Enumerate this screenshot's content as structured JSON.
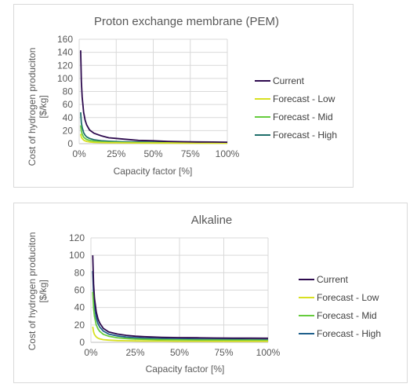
{
  "charts": [
    {
      "title": "Proton exchange membrane (PEM)",
      "ylabel_lines": [
        "Cost of hydrogen produciton",
        "[$/kg]"
      ],
      "xlabel": "Capacity factor [%]",
      "yticks": [
        "0",
        "20",
        "40",
        "60",
        "80",
        "100",
        "120",
        "140",
        "160"
      ],
      "xticks": [
        "0%",
        "25%",
        "50%",
        "75%",
        "100%"
      ],
      "legend": [
        "Current",
        "Forecast - Low",
        "Forecast - Mid",
        "Forecast - High"
      ]
    },
    {
      "title": "Alkaline",
      "ylabel_lines": [
        "Cost of hydrogen produciton",
        "[$/kg]"
      ],
      "xlabel": "Capacity factor [%]",
      "yticks": [
        "0",
        "20",
        "40",
        "60",
        "80",
        "100",
        "120"
      ],
      "xticks": [
        "0%",
        "25%",
        "50%",
        "75%",
        "100%"
      ],
      "legend": [
        "Current",
        "Forecast - Low",
        "Forecast - Mid",
        "Forecast - High"
      ]
    }
  ],
  "chart_data": [
    {
      "type": "line",
      "title": "Proton exchange membrane (PEM)",
      "xlabel": "Capacity factor [%]",
      "ylabel": "Cost of hydrogen produciton [$/kg]",
      "xlim": [
        0,
        100
      ],
      "ylim": [
        0,
        160
      ],
      "grid": true,
      "legend_position": "right",
      "series": [
        {
          "name": "Current",
          "color": "#2d0a4e",
          "x": [
            1,
            1.5,
            2,
            3,
            4,
            5,
            7,
            10,
            15,
            20,
            25,
            30,
            40,
            50,
            60,
            70,
            80,
            90,
            100
          ],
          "y": [
            143,
            95,
            72,
            48,
            36,
            29,
            21,
            16,
            12,
            9,
            8,
            7,
            5,
            4.5,
            3.5,
            3,
            2.7,
            2.5,
            2.3
          ]
        },
        {
          "name": "Forecast - Low",
          "color": "#d8e021",
          "x": [
            1,
            1.5,
            2,
            3,
            4,
            5,
            7,
            10,
            15,
            20,
            25,
            30,
            40,
            50,
            60,
            70,
            80,
            90,
            100
          ],
          "y": [
            15,
            10,
            8,
            5.5,
            4.3,
            3.5,
            2.7,
            2.1,
            1.7,
            1.4,
            1.3,
            1.2,
            1.1,
            1,
            1,
            0.9,
            0.9,
            0.9,
            0.9
          ]
        },
        {
          "name": "Forecast - Mid",
          "color": "#66cc3d",
          "x": [
            1,
            1.5,
            2,
            3,
            4,
            5,
            7,
            10,
            15,
            20,
            25,
            30,
            40,
            50,
            60,
            70,
            80,
            90,
            100
          ],
          "y": [
            28,
            19,
            15,
            10,
            8,
            6.5,
            5,
            3.7,
            2.8,
            2.3,
            2,
            1.8,
            1.6,
            1.5,
            1.4,
            1.3,
            1.3,
            1.3,
            1.2
          ]
        },
        {
          "name": "Forecast - High",
          "color": "#1f6f6b",
          "x": [
            1,
            1.5,
            2,
            3,
            4,
            5,
            7,
            10,
            15,
            20,
            25,
            30,
            40,
            50,
            60,
            70,
            80,
            90,
            100
          ],
          "y": [
            48,
            32,
            25,
            17,
            13,
            10.5,
            8,
            6,
            4.5,
            3.7,
            3.2,
            2.9,
            2.5,
            2.3,
            2.1,
            2,
            2,
            1.9,
            1.9
          ]
        }
      ]
    },
    {
      "type": "line",
      "title": "Alkaline",
      "xlabel": "Capacity factor [%]",
      "ylabel": "Cost of hydrogen produciton [$/kg]",
      "xlim": [
        0,
        100
      ],
      "ylim": [
        0,
        120
      ],
      "grid": true,
      "legend_position": "right",
      "series": [
        {
          "name": "Current",
          "color": "#2d0a4e",
          "x": [
            1,
            1.5,
            2,
            3,
            4,
            5,
            7,
            10,
            15,
            20,
            25,
            30,
            40,
            50,
            60,
            70,
            80,
            90,
            100
          ],
          "y": [
            100,
            67,
            51,
            35,
            27,
            22,
            16,
            12,
            9.5,
            8,
            7,
            6.5,
            5.8,
            5.4,
            5.2,
            5,
            4.9,
            4.8,
            4.7
          ]
        },
        {
          "name": "Forecast - Low",
          "color": "#d8e021",
          "x": [
            1,
            1.5,
            2,
            3,
            4,
            5,
            7,
            10,
            15,
            20,
            25,
            30,
            40,
            50,
            60,
            70,
            80,
            90,
            100
          ],
          "y": [
            18,
            12,
            9,
            6.2,
            4.8,
            4,
            3.1,
            2.5,
            2,
            1.8,
            1.6,
            1.5,
            1.4,
            1.3,
            1.3,
            1.2,
            1.2,
            1.2,
            1.2
          ]
        },
        {
          "name": "Forecast - Mid",
          "color": "#66cc3d",
          "x": [
            1,
            1.5,
            2,
            3,
            4,
            5,
            7,
            10,
            15,
            20,
            25,
            30,
            40,
            50,
            60,
            70,
            80,
            90,
            100
          ],
          "y": [
            58,
            39,
            30,
            20,
            15.5,
            12.5,
            9.2,
            7,
            5.2,
            4.3,
            3.8,
            3.4,
            3,
            2.8,
            2.6,
            2.5,
            2.4,
            2.4,
            2.3
          ]
        },
        {
          "name": "Forecast - High",
          "color": "#1f5f8b",
          "x": [
            1,
            1.5,
            2,
            3,
            4,
            5,
            7,
            10,
            15,
            20,
            25,
            30,
            40,
            50,
            60,
            70,
            80,
            90,
            100
          ],
          "y": [
            82,
            55,
            42,
            28,
            21.5,
            17.5,
            13,
            9.5,
            7.3,
            6,
            5.3,
            4.8,
            4.2,
            3.8,
            3.6,
            3.4,
            3.3,
            3.2,
            3.1
          ]
        }
      ]
    }
  ]
}
